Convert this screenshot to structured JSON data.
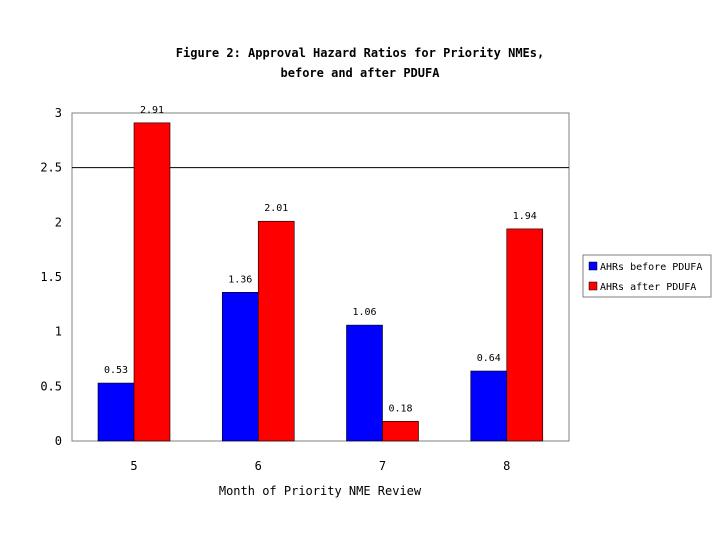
{
  "chart_data": {
    "type": "bar",
    "title_line1": "Figure 2: Approval Hazard Ratios for Priority NMEs,",
    "title_line2": "before and after PDUFA",
    "xlabel": "Month of Priority NME Review",
    "ylabel": "",
    "categories": [
      "5",
      "6",
      "7",
      "8"
    ],
    "ylim": [
      0,
      3
    ],
    "yticks": [
      "0",
      "0.5",
      "1",
      "1.5",
      "2",
      "2.5",
      "3"
    ],
    "grid": "single horizontal line at 2.5",
    "legend_position": "right",
    "series": [
      {
        "name": "AHRs before PDUFA",
        "color": "#0000ff",
        "values": [
          0.53,
          1.36,
          1.06,
          0.64
        ],
        "labels": [
          "0.53",
          "1.36",
          "1.06",
          "0.64"
        ]
      },
      {
        "name": "AHRs after PDUFA",
        "color": "#ff0000",
        "values": [
          2.91,
          2.01,
          0.18,
          1.94
        ],
        "labels": [
          "2.91",
          "2.01",
          "0.18",
          "1.94"
        ]
      }
    ]
  }
}
